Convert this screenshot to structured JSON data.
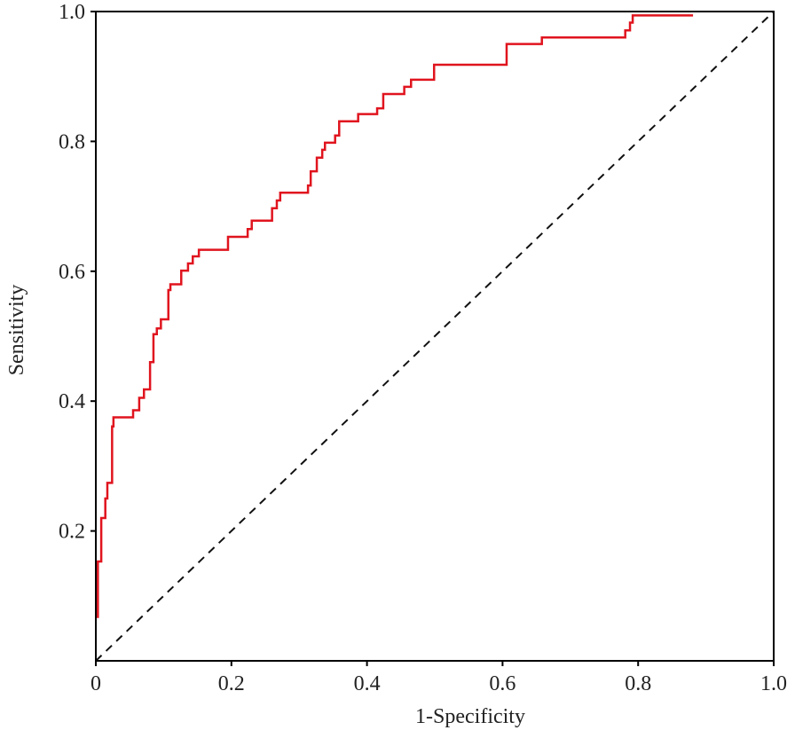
{
  "chart_data": {
    "type": "line",
    "xlabel": "1-Specificity",
    "ylabel": "Sensitivity",
    "xlim": [
      0,
      1
    ],
    "ylim": [
      0,
      1
    ],
    "xticks": [
      0,
      0.2,
      0.4,
      0.6,
      0.8,
      {
        "value": 1,
        "label": "1.0"
      }
    ],
    "yticks": [
      0.2,
      0.4,
      0.6,
      0.8,
      {
        "value": 1,
        "label": "1.0"
      }
    ],
    "reference_line": true,
    "x": [
      0.003,
      0.003,
      0.008,
      0.008,
      0.014,
      0.014,
      0.017,
      0.017,
      0.024,
      0.024,
      0.026,
      0.026,
      0.055,
      0.055,
      0.064,
      0.064,
      0.071,
      0.071,
      0.08,
      0.08,
      0.085,
      0.085,
      0.09,
      0.09,
      0.096,
      0.096,
      0.107,
      0.107,
      0.11,
      0.11,
      0.126,
      0.126,
      0.136,
      0.136,
      0.143,
      0.143,
      0.152,
      0.152,
      0.195,
      0.195,
      0.224,
      0.224,
      0.23,
      0.23,
      0.26,
      0.26,
      0.267,
      0.267,
      0.272,
      0.272,
      0.313,
      0.313,
      0.317,
      0.317,
      0.326,
      0.326,
      0.334,
      0.334,
      0.338,
      0.338,
      0.353,
      0.353,
      0.359,
      0.359,
      0.387,
      0.387,
      0.415,
      0.415,
      0.424,
      0.424,
      0.455,
      0.455,
      0.465,
      0.465,
      0.499,
      0.499,
      0.606,
      0.606,
      0.658,
      0.658,
      0.781,
      0.781,
      0.788,
      0.788,
      0.792,
      0.792,
      0.881
    ],
    "series": [
      {
        "color": "#e0141e",
        "values": [
          0.066,
          0.153,
          0.153,
          0.22,
          0.22,
          0.25,
          0.25,
          0.274,
          0.274,
          0.361,
          0.361,
          0.375,
          0.375,
          0.386,
          0.386,
          0.405,
          0.405,
          0.418,
          0.418,
          0.46,
          0.46,
          0.503,
          0.503,
          0.512,
          0.512,
          0.526,
          0.526,
          0.571,
          0.571,
          0.58,
          0.58,
          0.601,
          0.601,
          0.612,
          0.612,
          0.623,
          0.623,
          0.633,
          0.633,
          0.653,
          0.653,
          0.665,
          0.665,
          0.678,
          0.678,
          0.697,
          0.697,
          0.709,
          0.709,
          0.721,
          0.721,
          0.732,
          0.732,
          0.754,
          0.754,
          0.775,
          0.775,
          0.787,
          0.787,
          0.798,
          0.798,
          0.809,
          0.809,
          0.831,
          0.831,
          0.842,
          0.842,
          0.851,
          0.851,
          0.873,
          0.873,
          0.884,
          0.884,
          0.895,
          0.895,
          0.918,
          0.918,
          0.95,
          0.95,
          0.96,
          0.96,
          0.971,
          0.971,
          0.983,
          0.983,
          0.994,
          0.994
        ]
      }
    ]
  }
}
